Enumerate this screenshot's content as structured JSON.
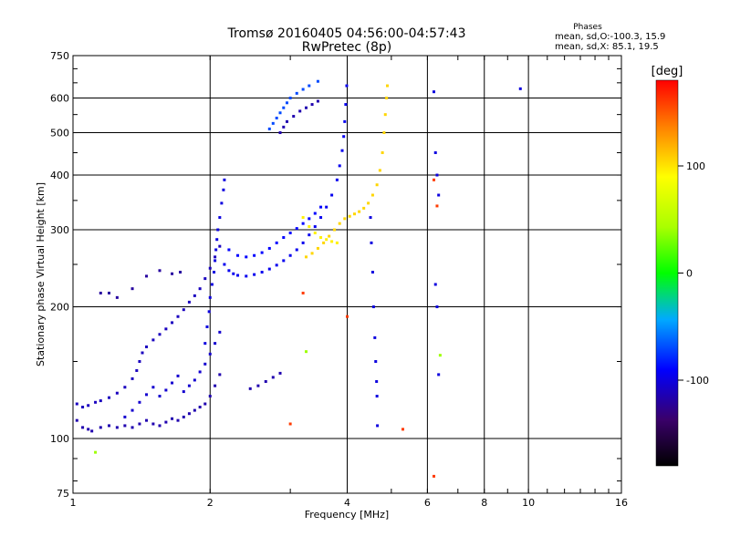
{
  "chart_data": {
    "type": "scatter",
    "title": "Tromsø 20160405 04:56:00-04:57:43",
    "subtitle": "RwPretec (8p)",
    "xlabel": "Frequency [MHz]",
    "ylabel": "Stationary phase Virtual Height [km]",
    "x_scale": "log",
    "y_scale": "log",
    "xlim": [
      1,
      16
    ],
    "ylim": [
      75,
      750
    ],
    "x_ticks": [
      1,
      2,
      4,
      6,
      8,
      10,
      16
    ],
    "x_tick_labels": [
      "1",
      "2",
      "4",
      "6",
      "8",
      "10",
      "16"
    ],
    "x_gridlines": [
      2,
      4,
      6,
      8,
      10
    ],
    "y_ticks": [
      75,
      100,
      200,
      300,
      400,
      500,
      600,
      750
    ],
    "y_tick_labels": [
      "75",
      "100",
      "200",
      "300",
      "400",
      "500",
      "600",
      "750"
    ],
    "y_gridlines": [
      100,
      200,
      300,
      400,
      500,
      600
    ],
    "grid": true,
    "stats": {
      "heading": "Phases",
      "line1": "mean, sd,O:-100.3, 15.9",
      "line2": "mean, sd,X:  85.1, 19.5"
    },
    "colorbar": {
      "label": "[deg]",
      "range": [
        -180,
        180
      ],
      "ticks": [
        100,
        0,
        -100
      ],
      "tick_labels": [
        "100",
        "0",
        "-100"
      ],
      "placement": "right"
    },
    "series": [
      {
        "phase": -110,
        "points": [
          [
            1.02,
            120
          ],
          [
            1.05,
            118
          ],
          [
            1.08,
            119
          ],
          [
            1.12,
            121
          ],
          [
            1.15,
            122
          ],
          [
            1.2,
            124
          ],
          [
            1.25,
            127
          ],
          [
            1.3,
            131
          ],
          [
            1.35,
            137
          ],
          [
            1.38,
            143
          ],
          [
            1.4,
            150
          ],
          [
            1.42,
            157
          ],
          [
            1.45,
            162
          ],
          [
            1.5,
            168
          ],
          [
            1.55,
            173
          ],
          [
            1.6,
            178
          ],
          [
            1.65,
            184
          ],
          [
            1.7,
            190
          ],
          [
            1.75,
            197
          ],
          [
            1.8,
            205
          ],
          [
            1.85,
            212
          ],
          [
            1.9,
            220
          ],
          [
            1.95,
            232
          ],
          [
            2.0,
            245
          ],
          [
            2.05,
            260
          ],
          [
            2.1,
            275
          ]
        ]
      },
      {
        "phase": -115,
        "points": [
          [
            1.02,
            110
          ],
          [
            1.05,
            106
          ],
          [
            1.08,
            105
          ],
          [
            1.1,
            104
          ],
          [
            1.15,
            106
          ],
          [
            1.2,
            107
          ],
          [
            1.25,
            106
          ],
          [
            1.3,
            107
          ],
          [
            1.35,
            106
          ],
          [
            1.4,
            108
          ],
          [
            1.45,
            110
          ],
          [
            1.5,
            108
          ],
          [
            1.55,
            107
          ],
          [
            1.6,
            109
          ],
          [
            1.65,
            111
          ],
          [
            1.7,
            110
          ],
          [
            1.75,
            112
          ],
          [
            1.8,
            114
          ],
          [
            1.85,
            116
          ],
          [
            1.9,
            118
          ],
          [
            1.95,
            120
          ],
          [
            2.0,
            125
          ],
          [
            2.05,
            132
          ],
          [
            2.1,
            140
          ]
        ]
      },
      {
        "phase": -105,
        "points": [
          [
            1.3,
            112
          ],
          [
            1.35,
            116
          ],
          [
            1.4,
            121
          ],
          [
            1.45,
            126
          ],
          [
            1.5,
            131
          ],
          [
            1.55,
            125
          ],
          [
            1.6,
            129
          ],
          [
            1.65,
            134
          ],
          [
            1.7,
            139
          ],
          [
            1.75,
            128
          ],
          [
            1.8,
            132
          ],
          [
            1.85,
            136
          ],
          [
            1.9,
            142
          ],
          [
            1.95,
            148
          ],
          [
            2.0,
            156
          ],
          [
            2.05,
            165
          ],
          [
            2.1,
            175
          ]
        ]
      },
      {
        "phase": -100,
        "points": [
          [
            1.95,
            165
          ],
          [
            1.97,
            180
          ],
          [
            1.99,
            195
          ],
          [
            2.0,
            210
          ],
          [
            2.02,
            225
          ],
          [
            2.04,
            240
          ],
          [
            2.05,
            255
          ],
          [
            2.06,
            270
          ],
          [
            2.07,
            285
          ],
          [
            2.08,
            300
          ],
          [
            2.1,
            320
          ],
          [
            2.12,
            345
          ],
          [
            2.14,
            370
          ],
          [
            2.15,
            390
          ]
        ]
      },
      {
        "phase": -95,
        "points": [
          [
            2.15,
            250
          ],
          [
            2.2,
            242
          ],
          [
            2.25,
            238
          ],
          [
            2.3,
            236
          ],
          [
            2.4,
            235
          ],
          [
            2.5,
            237
          ],
          [
            2.6,
            240
          ],
          [
            2.7,
            244
          ],
          [
            2.8,
            249
          ],
          [
            2.9,
            255
          ],
          [
            3.0,
            262
          ],
          [
            3.1,
            270
          ],
          [
            3.2,
            280
          ],
          [
            3.3,
            292
          ],
          [
            3.4,
            305
          ],
          [
            3.5,
            320
          ],
          [
            3.6,
            338
          ],
          [
            3.7,
            360
          ],
          [
            3.8,
            390
          ],
          [
            3.85,
            420
          ],
          [
            3.9,
            455
          ],
          [
            3.93,
            490
          ],
          [
            3.95,
            530
          ],
          [
            3.97,
            580
          ],
          [
            3.99,
            640
          ]
        ]
      },
      {
        "phase": -90,
        "points": [
          [
            2.2,
            270
          ],
          [
            2.3,
            262
          ],
          [
            2.4,
            260
          ],
          [
            2.5,
            262
          ],
          [
            2.6,
            266
          ],
          [
            2.7,
            272
          ],
          [
            2.8,
            280
          ],
          [
            2.9,
            288
          ],
          [
            3.0,
            295
          ],
          [
            3.1,
            302
          ],
          [
            3.2,
            310
          ],
          [
            3.3,
            318
          ],
          [
            3.4,
            327
          ],
          [
            3.5,
            338
          ]
        ]
      },
      {
        "phase": -70,
        "points": [
          [
            2.7,
            510
          ],
          [
            2.75,
            525
          ],
          [
            2.8,
            540
          ],
          [
            2.85,
            555
          ],
          [
            2.9,
            570
          ],
          [
            2.95,
            585
          ],
          [
            3.0,
            600
          ],
          [
            3.1,
            615
          ],
          [
            3.2,
            628
          ],
          [
            3.3,
            640
          ],
          [
            3.45,
            655
          ]
        ]
      },
      {
        "phase": -115,
        "points": [
          [
            2.85,
            500
          ],
          [
            2.9,
            515
          ],
          [
            2.95,
            530
          ],
          [
            3.05,
            545
          ],
          [
            3.15,
            560
          ],
          [
            3.25,
            570
          ],
          [
            3.35,
            580
          ],
          [
            3.45,
            590
          ]
        ]
      },
      {
        "phase": -120,
        "points": [
          [
            1.15,
            215
          ],
          [
            1.2,
            215
          ],
          [
            1.25,
            210
          ],
          [
            1.35,
            220
          ],
          [
            1.45,
            235
          ],
          [
            1.55,
            242
          ],
          [
            1.65,
            238
          ],
          [
            1.72,
            240
          ]
        ]
      },
      {
        "phase": -115,
        "points": [
          [
            2.45,
            130
          ],
          [
            2.55,
            132
          ],
          [
            2.65,
            135
          ],
          [
            2.75,
            138
          ],
          [
            2.85,
            141
          ]
        ]
      },
      {
        "phase": 105,
        "points": [
          [
            3.25,
            260
          ],
          [
            3.35,
            265
          ],
          [
            3.45,
            272
          ],
          [
            3.55,
            280
          ],
          [
            3.65,
            290
          ],
          [
            3.75,
            300
          ],
          [
            3.85,
            310
          ],
          [
            3.95,
            318
          ],
          [
            4.05,
            322
          ],
          [
            4.15,
            326
          ],
          [
            4.25,
            330
          ],
          [
            4.35,
            336
          ],
          [
            4.45,
            345
          ],
          [
            4.55,
            360
          ],
          [
            4.65,
            380
          ],
          [
            4.72,
            410
          ],
          [
            4.78,
            450
          ],
          [
            4.82,
            500
          ],
          [
            4.85,
            550
          ],
          [
            4.88,
            600
          ],
          [
            4.9,
            640
          ]
        ]
      },
      {
        "phase": 95,
        "points": [
          [
            3.2,
            320
          ],
          [
            3.3,
            305
          ],
          [
            3.4,
            295
          ],
          [
            3.5,
            288
          ],
          [
            3.6,
            285
          ],
          [
            3.7,
            282
          ],
          [
            3.8,
            280
          ]
        ]
      },
      {
        "phase": -100,
        "points": [
          [
            4.5,
            320
          ],
          [
            4.52,
            280
          ],
          [
            4.55,
            240
          ],
          [
            4.57,
            200
          ],
          [
            4.6,
            170
          ],
          [
            4.62,
            150
          ],
          [
            4.64,
            135
          ],
          [
            4.65,
            125
          ],
          [
            4.66,
            107
          ]
        ]
      },
      {
        "phase": -100,
        "points": [
          [
            6.2,
            620
          ],
          [
            6.25,
            450
          ],
          [
            6.3,
            400
          ],
          [
            6.35,
            360
          ],
          [
            6.25,
            225
          ],
          [
            6.3,
            200
          ],
          [
            6.35,
            140
          ],
          [
            9.6,
            630
          ]
        ]
      },
      {
        "phase": 40,
        "points": [
          [
            1.12,
            93
          ],
          [
            3.25,
            158
          ],
          [
            6.4,
            155
          ]
        ]
      },
      {
        "phase": 160,
        "points": [
          [
            3.0,
            108
          ],
          [
            5.3,
            105
          ],
          [
            6.2,
            82
          ],
          [
            6.2,
            390
          ],
          [
            6.3,
            340
          ],
          [
            3.2,
            215
          ],
          [
            4.0,
            190
          ]
        ]
      }
    ]
  }
}
